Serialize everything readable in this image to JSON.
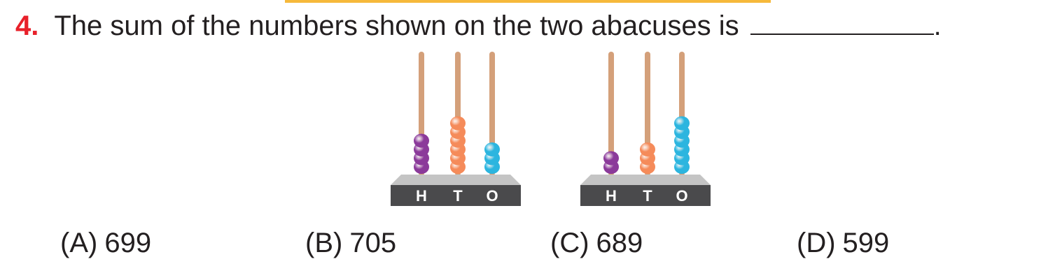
{
  "question": {
    "number": "4.",
    "text": "The sum of the numbers shown on the two abacuses is",
    "end": "."
  },
  "abaci": [
    {
      "labels": [
        "H",
        "T",
        "O"
      ],
      "beads": {
        "H": 4,
        "T": 6,
        "O": 3
      }
    },
    {
      "labels": [
        "H",
        "T",
        "O"
      ],
      "beads": {
        "H": 2,
        "T": 3,
        "O": 6
      }
    }
  ],
  "colors": {
    "question_number": "#e8202a",
    "rod": "#d4a07a",
    "hundreds_bead": "#8b3a9a",
    "tens_bead": "#f58b5a",
    "ones_bead": "#2cb5df",
    "base_top": "#c4c4c4",
    "base_front": "#4a4a4c",
    "accent_rule": "#f6b93b"
  },
  "options": [
    {
      "letter": "(A)",
      "value": "699"
    },
    {
      "letter": "(B)",
      "value": "705"
    },
    {
      "letter": "(C)",
      "value": "689"
    },
    {
      "letter": "(D)",
      "value": "599"
    }
  ]
}
